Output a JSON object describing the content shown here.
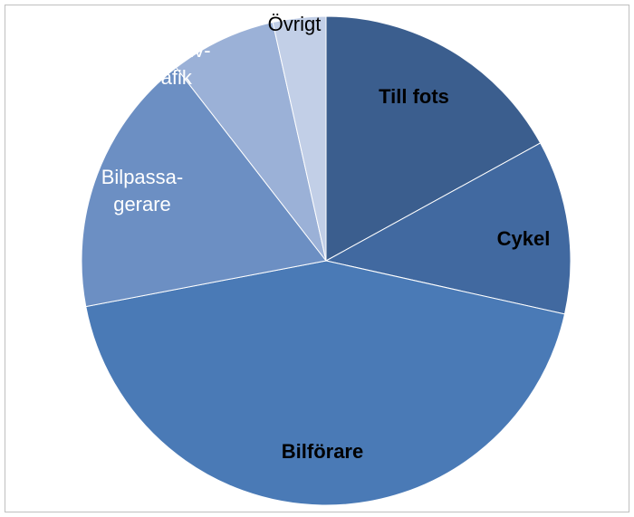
{
  "chart_data": {
    "type": "pie",
    "categories": [
      [
        "Till fots"
      ],
      [
        "Cykel"
      ],
      [
        "Bilförare"
      ],
      [
        "Bilpassa-",
        "gerare"
      ],
      [
        "Kollektiv-",
        "trafik"
      ],
      [
        "Övrigt"
      ]
    ],
    "values": [
      17,
      11.5,
      43.5,
      17.5,
      7,
      3.5
    ],
    "colors": [
      "#3b5e8e",
      "#4169a0",
      "#4a7ab6",
      "#6c8fc3",
      "#9bb1d7",
      "#c2cfe7"
    ],
    "label_colors": [
      "#000000",
      "#000000",
      "#000000",
      "#ffffff",
      "#ffffff",
      "#000000"
    ]
  }
}
